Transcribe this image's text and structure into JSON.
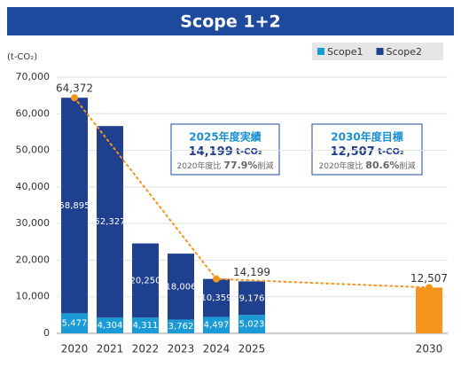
{
  "chart_data": {
    "type": "stacked_bar",
    "title": "Scope 1+2",
    "y_label": "(t-CO₂)",
    "categories": [
      "2020",
      "2021",
      "2022",
      "2023",
      "2024",
      "2025",
      null,
      null,
      null,
      null,
      "2030"
    ],
    "series": [
      {
        "name": "Scope1",
        "color": "#1a9ad6",
        "values": [
          5477,
          4304,
          4311,
          3762,
          4497,
          5023,
          null,
          null,
          null,
          null,
          null
        ],
        "value_labels": [
          "5,477",
          "4,304",
          "4,311",
          "3,762",
          "4,497",
          "5,023",
          null,
          null,
          null,
          null,
          null
        ]
      },
      {
        "name": "Scope2",
        "color": "#1f3f8f",
        "values": [
          58895,
          52327,
          20250,
          18006,
          10359,
          9176,
          null,
          null,
          null,
          null,
          null
        ],
        "value_labels": [
          "58,895",
          "52,327",
          "20,250",
          "18,006",
          "10,359",
          "9,176",
          null,
          null,
          null,
          null,
          null
        ]
      },
      {
        "color": "#f7941d",
        "values": [
          null,
          null,
          null,
          null,
          null,
          null,
          null,
          null,
          null,
          null,
          12507
        ],
        "value_labels": [
          null,
          null,
          null,
          null,
          null,
          null,
          null,
          null,
          null,
          null,
          "12,507"
        ]
      }
    ],
    "totals": {
      "values": [
        64372,
        null,
        null,
        null,
        null,
        14199,
        null,
        null,
        null,
        null,
        null
      ],
      "value_labels": [
        "64,372",
        null,
        null,
        null,
        null,
        "14,199",
        null,
        null,
        null,
        null,
        null
      ]
    },
    "trend": {
      "color": "#f7941d",
      "x": [
        "2020",
        "2024",
        "2030"
      ],
      "values": [
        64372,
        14856,
        12507
      ]
    },
    "ylim": [
      0,
      70000
    ],
    "yticks": [
      0,
      {
        "value": 10000,
        "label": "10,000"
      },
      {
        "value": 20000,
        "label": "20,000"
      },
      {
        "value": 30000,
        "label": "30,000"
      },
      {
        "value": 40000,
        "label": "40,000"
      },
      {
        "value": 50000,
        "label": "50,000"
      },
      {
        "value": 60000,
        "label": "60,000"
      },
      {
        "value": 70000,
        "label": "70,000"
      }
    ],
    "legend": "top-right",
    "annotations": [
      {
        "title": "2025年度実績",
        "value": "14,199",
        "unit": "t-CO₂",
        "note_prefix": "2020年度比",
        "note_value": "77.9%",
        "note_suffix": "削減"
      },
      {
        "title": "2030年度目標",
        "value": "12,507",
        "unit": "t-CO₂",
        "note_prefix": "2020年度比",
        "note_value": "80.6%",
        "note_suffix": "削減"
      }
    ]
  }
}
